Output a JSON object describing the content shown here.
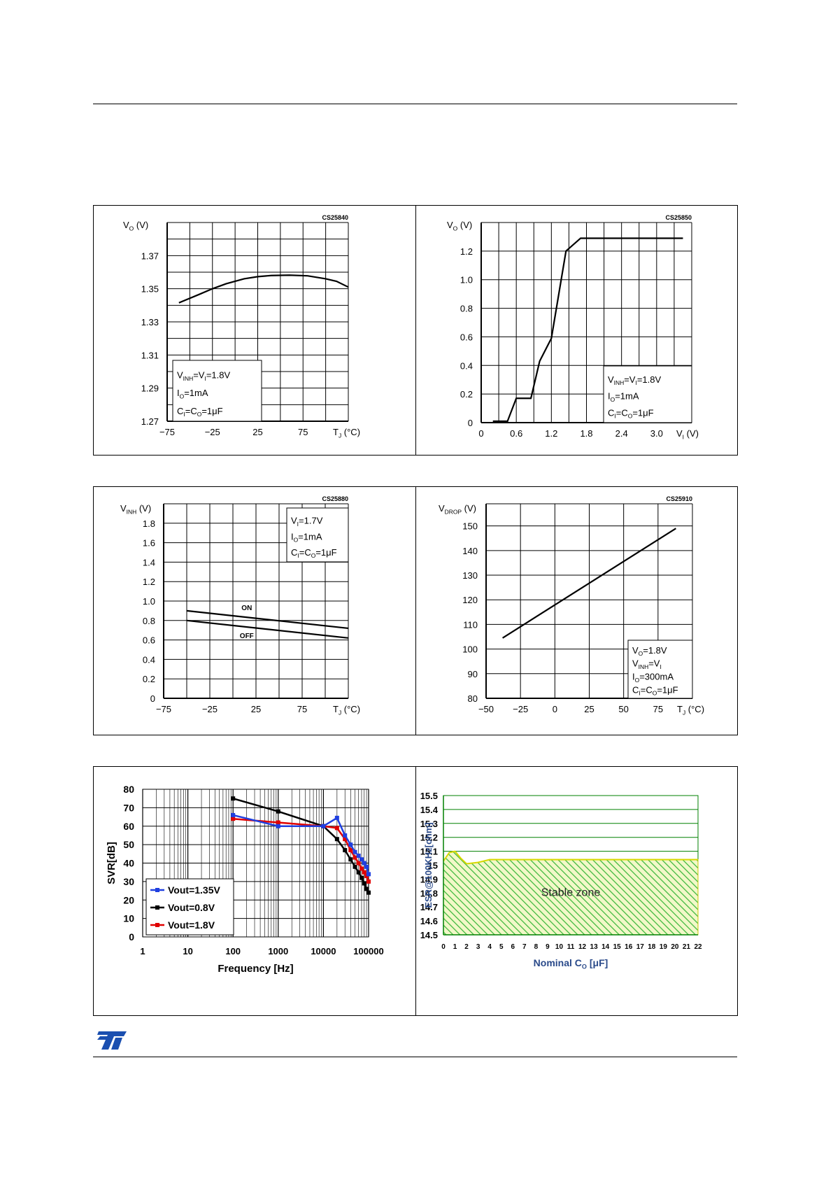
{
  "page": {
    "logo_text": "ST"
  },
  "chart_data": [
    {
      "id": "vo_vs_tj",
      "type": "line",
      "code": "CS25840",
      "y_axis_label": "V_O (V)",
      "x_axis_label": "T_J (°C)",
      "x_ticks": [
        "-75",
        "-25",
        "25",
        "75"
      ],
      "y_ticks": [
        "1.27",
        "1.29",
        "1.31",
        "1.33",
        "1.35",
        "1.37"
      ],
      "xlim": [
        -75,
        125
      ],
      "ylim": [
        1.27,
        1.39
      ],
      "conditions": [
        "V_INH=V_I=1.8V",
        "I_O=1mA",
        "C_I=C_O=1μF"
      ],
      "series": [
        {
          "x": [
            -62,
            -40,
            -25,
            -10,
            10,
            25,
            40,
            60,
            80,
            100,
            112,
            125
          ],
          "y": [
            1.3415,
            1.3465,
            1.35,
            1.353,
            1.356,
            1.3573,
            1.358,
            1.3582,
            1.3578,
            1.356,
            1.3545,
            1.351
          ]
        }
      ]
    },
    {
      "id": "vo_vs_vi",
      "type": "line",
      "code": "CS25850",
      "y_axis_label": "V_O (V)",
      "x_axis_label": "V_I (V)",
      "x_ticks": [
        "0",
        "0.6",
        "1.2",
        "1.8",
        "2.4",
        "3.0"
      ],
      "y_ticks": [
        "0",
        "0.2",
        "0.4",
        "0.6",
        "0.8",
        "1.0",
        "1.2"
      ],
      "xlim": [
        0,
        3.6
      ],
      "ylim": [
        0,
        1.4
      ],
      "conditions": [
        "V_INH=V_I=1.8V",
        "I_O=1mA",
        "C_I=C_O=1μF"
      ],
      "series": [
        {
          "x": [
            0.2,
            0.45,
            0.6,
            0.85,
            1.0,
            1.2,
            1.45,
            1.7,
            3.45
          ],
          "y": [
            0.01,
            0.01,
            0.17,
            0.17,
            0.43,
            0.59,
            1.2,
            1.29,
            1.29
          ]
        }
      ]
    },
    {
      "id": "vinh_vs_tj",
      "type": "line",
      "code": "CS25880",
      "y_axis_label": "V_INH (V)",
      "x_axis_label": "T_J (°C)",
      "x_ticks": [
        "-75",
        "-25",
        "25",
        "75"
      ],
      "y_ticks": [
        "0",
        "0.2",
        "0.4",
        "0.6",
        "0.8",
        "1.0",
        "1.2",
        "1.4",
        "1.6",
        "1.8"
      ],
      "xlim": [
        -75,
        125
      ],
      "ylim": [
        0,
        2.0
      ],
      "conditions": [
        "V_I=1.7V",
        "I_O=1mA",
        "C_I=C_O=1μF"
      ],
      "series": [
        {
          "name": "ON",
          "x": [
            -50,
            125
          ],
          "y": [
            0.9,
            0.72
          ]
        },
        {
          "name": "OFF",
          "x": [
            -50,
            125
          ],
          "y": [
            0.8,
            0.62
          ]
        }
      ]
    },
    {
      "id": "vdrop_vs_tj",
      "type": "line",
      "code": "CS25910",
      "y_axis_label": "V_DROP (V)",
      "x_axis_label": "T_J (°C)",
      "x_ticks": [
        "-50",
        "-25",
        "0",
        "25",
        "50",
        "75"
      ],
      "y_ticks": [
        "80",
        "90",
        "100",
        "110",
        "120",
        "130",
        "140",
        "150"
      ],
      "xlim": [
        -50,
        100
      ],
      "ylim": [
        80,
        159
      ],
      "conditions": [
        "V_O=1.8V",
        "V_INH=V_I",
        "I_O=300mA",
        "C_I=C_O=1μF"
      ],
      "series": [
        {
          "x": [
            -38,
            88
          ],
          "y": [
            104.5,
            149
          ]
        }
      ]
    },
    {
      "id": "svr_vs_frequency",
      "type": "line",
      "x_scale": "log",
      "y_axis_label": "SVR[dB]",
      "x_axis_label": "Frequency  [Hz]",
      "x_ticks": [
        "1",
        "10",
        "100",
        "1000",
        "10000",
        "100000"
      ],
      "y_ticks": [
        "0",
        "10",
        "20",
        "30",
        "40",
        "50",
        "60",
        "70",
        "80"
      ],
      "xlim": [
        1,
        100000
      ],
      "ylim": [
        0,
        80
      ],
      "legend": "bottom-left",
      "series": [
        {
          "name": "Vout=1.35V",
          "color": "#1f3fe0",
          "x": [
            100,
            1000,
            10000,
            20000,
            30000,
            40000,
            50000,
            60000,
            70000,
            80000,
            90000,
            100000
          ],
          "y": [
            66,
            60,
            60,
            64.5,
            55,
            50,
            46,
            44,
            42,
            40,
            38,
            34
          ]
        },
        {
          "name": "Vout=0.8V",
          "color": "#000000",
          "x": [
            100,
            1000,
            10000,
            20000,
            30000,
            40000,
            50000,
            60000,
            70000,
            80000,
            90000,
            100000
          ],
          "y": [
            75,
            68,
            60,
            53,
            47,
            42,
            38,
            35,
            32,
            29,
            26,
            24
          ]
        },
        {
          "name": "Vout=1.8V",
          "color": "#e00000",
          "x": [
            100,
            1000,
            10000,
            20000,
            30000,
            40000,
            50000,
            60000,
            70000,
            80000,
            90000,
            100000
          ],
          "y": [
            64,
            62,
            60,
            59,
            53,
            47,
            43,
            40,
            37,
            35,
            33,
            30
          ]
        }
      ]
    },
    {
      "id": "esr_vs_co",
      "type": "area",
      "y_axis_label": "ESR@100KHz[ohm]",
      "x_axis_label": "Nominal C_O [μF]",
      "x_ticks": [
        "0",
        "1",
        "2",
        "3",
        "4",
        "5",
        "6",
        "7",
        "8",
        "9",
        "10",
        "11",
        "12",
        "13",
        "14",
        "15",
        "16",
        "17",
        "18",
        "19",
        "20",
        "21",
        "22"
      ],
      "y_ticks": [
        "14.5",
        "14.6",
        "14.7",
        "14.8",
        "14.9",
        "15",
        "15.1",
        "15.2",
        "15.3",
        "15.4",
        "15.5"
      ],
      "xlim": [
        0,
        22
      ],
      "ylim": [
        14.5,
        15.5
      ],
      "annotation": "Stable zone",
      "series": [
        {
          "x": [
            0,
            0.5,
            1,
            1.5,
            2,
            3,
            4,
            5,
            10,
            15,
            20,
            22
          ],
          "y": [
            15.03,
            15.09,
            15.1,
            15.05,
            15.01,
            15.02,
            15.04,
            15.04,
            15.04,
            15.04,
            15.04,
            15.04
          ]
        }
      ]
    }
  ]
}
